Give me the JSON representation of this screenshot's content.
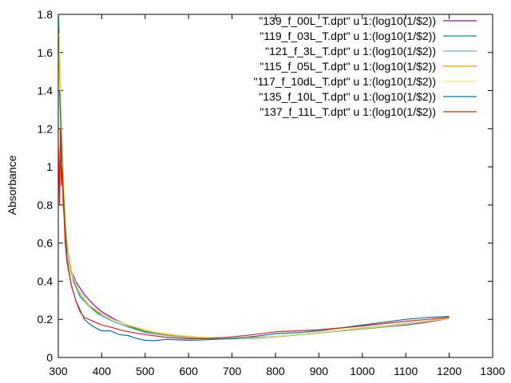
{
  "chart_data": {
    "type": "line",
    "title": "",
    "xlabel": "",
    "ylabel": "Absorbance",
    "xlim": [
      300,
      1300
    ],
    "ylim": [
      0,
      1.8
    ],
    "xticks": [
      "300",
      "400",
      "500",
      "600",
      "700",
      "800",
      "900",
      "1000",
      "1100",
      "1200",
      "1300"
    ],
    "yticks": [
      "0",
      "0.2",
      "0.4",
      "0.6",
      "0.8",
      "1",
      "1.2",
      "1.4",
      "1.6",
      "1.8"
    ],
    "grid": false,
    "legend_position": "top-right",
    "series": [
      {
        "name": "\"139_f_00L_T.dpt\"  u 1:(log10(1/$2))",
        "color": "#9400d3",
        "points": [
          [
            305,
            1.35
          ],
          [
            308,
            1.1
          ],
          [
            312,
            0.9
          ],
          [
            316,
            0.72
          ],
          [
            320,
            0.6
          ],
          [
            330,
            0.46
          ],
          [
            340,
            0.4
          ],
          [
            360,
            0.33
          ],
          [
            380,
            0.28
          ],
          [
            400,
            0.24
          ],
          [
            430,
            0.2
          ],
          [
            460,
            0.17
          ],
          [
            500,
            0.135
          ],
          [
            550,
            0.115
          ],
          [
            600,
            0.105
          ],
          [
            650,
            0.1
          ],
          [
            700,
            0.1
          ],
          [
            750,
            0.105
          ],
          [
            800,
            0.11
          ],
          [
            850,
            0.12
          ],
          [
            900,
            0.13
          ],
          [
            950,
            0.14
          ],
          [
            1000,
            0.15
          ],
          [
            1050,
            0.16
          ],
          [
            1100,
            0.17
          ],
          [
            1150,
            0.185
          ],
          [
            1200,
            0.205
          ]
        ]
      },
      {
        "name": "\"119_f_03L_T.dpt\"  u 1:(log10(1/$2))",
        "color": "#009e73",
        "points": [
          [
            301,
            1.8
          ],
          [
            303,
            1.55
          ],
          [
            306,
            1.3
          ],
          [
            310,
            1.0
          ],
          [
            314,
            0.78
          ],
          [
            318,
            0.62
          ],
          [
            325,
            0.5
          ],
          [
            335,
            0.4
          ],
          [
            350,
            0.32
          ],
          [
            370,
            0.27
          ],
          [
            400,
            0.22
          ],
          [
            430,
            0.185
          ],
          [
            470,
            0.155
          ],
          [
            520,
            0.125
          ],
          [
            570,
            0.11
          ],
          [
            620,
            0.1
          ],
          [
            680,
            0.097
          ],
          [
            750,
            0.1
          ],
          [
            800,
            0.108
          ],
          [
            850,
            0.118
          ],
          [
            900,
            0.128
          ],
          [
            950,
            0.14
          ],
          [
            1000,
            0.15
          ],
          [
            1050,
            0.16
          ],
          [
            1100,
            0.172
          ],
          [
            1150,
            0.188
          ],
          [
            1200,
            0.21
          ]
        ]
      },
      {
        "name": "\"121_f_3L_T.dpt\"  u 1:(log10(1/$2))",
        "color": "#56b4e9",
        "points": [
          [
            303,
            1.6
          ],
          [
            306,
            1.3
          ],
          [
            310,
            1.0
          ],
          [
            315,
            0.75
          ],
          [
            320,
            0.58
          ],
          [
            330,
            0.44
          ],
          [
            345,
            0.35
          ],
          [
            365,
            0.28
          ],
          [
            390,
            0.23
          ],
          [
            420,
            0.195
          ],
          [
            460,
            0.16
          ],
          [
            500,
            0.13
          ],
          [
            550,
            0.115
          ],
          [
            600,
            0.105
          ],
          [
            650,
            0.1
          ],
          [
            700,
            0.098
          ],
          [
            750,
            0.1
          ],
          [
            800,
            0.108
          ],
          [
            850,
            0.118
          ],
          [
            900,
            0.13
          ],
          [
            950,
            0.142
          ],
          [
            1000,
            0.155
          ],
          [
            1050,
            0.165
          ],
          [
            1100,
            0.178
          ],
          [
            1150,
            0.192
          ],
          [
            1200,
            0.21
          ]
        ]
      },
      {
        "name": "\"115_f_05L_T.dpt\"  u 1:(log10(1/$2))",
        "color": "#e69f00",
        "points": [
          [
            302,
            1.55
          ],
          [
            305,
            1.35
          ],
          [
            309,
            1.05
          ],
          [
            314,
            0.8
          ],
          [
            320,
            0.6
          ],
          [
            330,
            0.45
          ],
          [
            345,
            0.36
          ],
          [
            365,
            0.29
          ],
          [
            390,
            0.24
          ],
          [
            420,
            0.205
          ],
          [
            460,
            0.17
          ],
          [
            500,
            0.14
          ],
          [
            550,
            0.12
          ],
          [
            600,
            0.108
          ],
          [
            650,
            0.102
          ],
          [
            700,
            0.1
          ],
          [
            750,
            0.102
          ],
          [
            800,
            0.11
          ],
          [
            850,
            0.12
          ],
          [
            900,
            0.13
          ],
          [
            950,
            0.142
          ],
          [
            1000,
            0.153
          ],
          [
            1050,
            0.163
          ],
          [
            1100,
            0.175
          ],
          [
            1150,
            0.19
          ],
          [
            1200,
            0.21
          ]
        ]
      },
      {
        "name": "\"117_f_10dL_T.dpt\"  u 1:(log10(1/$2))",
        "color": "#f0e442",
        "points": [
          [
            302,
            1.7
          ],
          [
            305,
            1.45
          ],
          [
            309,
            1.15
          ],
          [
            313,
            0.9
          ],
          [
            318,
            0.68
          ],
          [
            325,
            0.52
          ],
          [
            335,
            0.42
          ],
          [
            350,
            0.34
          ],
          [
            370,
            0.28
          ],
          [
            400,
            0.23
          ],
          [
            430,
            0.195
          ],
          [
            470,
            0.165
          ],
          [
            520,
            0.135
          ],
          [
            570,
            0.118
          ],
          [
            620,
            0.108
          ],
          [
            680,
            0.102
          ],
          [
            750,
            0.103
          ],
          [
            800,
            0.11
          ],
          [
            850,
            0.12
          ],
          [
            900,
            0.13
          ],
          [
            950,
            0.142
          ],
          [
            1000,
            0.152
          ],
          [
            1050,
            0.162
          ],
          [
            1100,
            0.175
          ],
          [
            1150,
            0.19
          ],
          [
            1200,
            0.205
          ]
        ]
      },
      {
        "name": "\"135_f_10L_T.dpt\"  u 1:(log10(1/$2))",
        "color": "#0072b2",
        "points": [
          [
            303,
            1.4
          ],
          [
            306,
            1.2
          ],
          [
            310,
            0.95
          ],
          [
            315,
            0.7
          ],
          [
            320,
            0.52
          ],
          [
            330,
            0.38
          ],
          [
            340,
            0.3
          ],
          [
            350,
            0.25
          ],
          [
            360,
            0.2
          ],
          [
            375,
            0.17
          ],
          [
            390,
            0.15
          ],
          [
            400,
            0.14
          ],
          [
            420,
            0.14
          ],
          [
            440,
            0.12
          ],
          [
            460,
            0.115
          ],
          [
            480,
            0.1
          ],
          [
            500,
            0.09
          ],
          [
            520,
            0.088
          ],
          [
            550,
            0.095
          ],
          [
            580,
            0.092
          ],
          [
            600,
            0.09
          ],
          [
            630,
            0.092
          ],
          [
            660,
            0.095
          ],
          [
            700,
            0.1
          ],
          [
            750,
            0.11
          ],
          [
            800,
            0.125
          ],
          [
            850,
            0.13
          ],
          [
            900,
            0.14
          ],
          [
            950,
            0.155
          ],
          [
            1000,
            0.17
          ],
          [
            1050,
            0.185
          ],
          [
            1100,
            0.2
          ],
          [
            1150,
            0.21
          ],
          [
            1200,
            0.215
          ]
        ]
      },
      {
        "name": "\"137_f_11L_T.dpt\"  u 1:(log10(1/$2))",
        "color": "#e51e10",
        "points": [
          [
            301,
            1.1
          ],
          [
            303,
            0.8
          ],
          [
            305,
            1.2
          ],
          [
            307,
            0.9
          ],
          [
            309,
            1.0
          ],
          [
            311,
            0.82
          ],
          [
            313,
            0.75
          ],
          [
            316,
            0.6
          ],
          [
            320,
            0.5
          ],
          [
            330,
            0.38
          ],
          [
            340,
            0.3
          ],
          [
            350,
            0.24
          ],
          [
            360,
            0.21
          ],
          [
            380,
            0.19
          ],
          [
            400,
            0.17
          ],
          [
            420,
            0.16
          ],
          [
            450,
            0.14
          ],
          [
            500,
            0.12
          ],
          [
            550,
            0.105
          ],
          [
            600,
            0.098
          ],
          [
            650,
            0.1
          ],
          [
            700,
            0.108
          ],
          [
            750,
            0.12
          ],
          [
            800,
            0.135
          ],
          [
            850,
            0.14
          ],
          [
            900,
            0.145
          ],
          [
            950,
            0.155
          ],
          [
            1000,
            0.165
          ],
          [
            1050,
            0.178
          ],
          [
            1100,
            0.19
          ],
          [
            1150,
            0.2
          ],
          [
            1200,
            0.21
          ]
        ]
      }
    ]
  }
}
